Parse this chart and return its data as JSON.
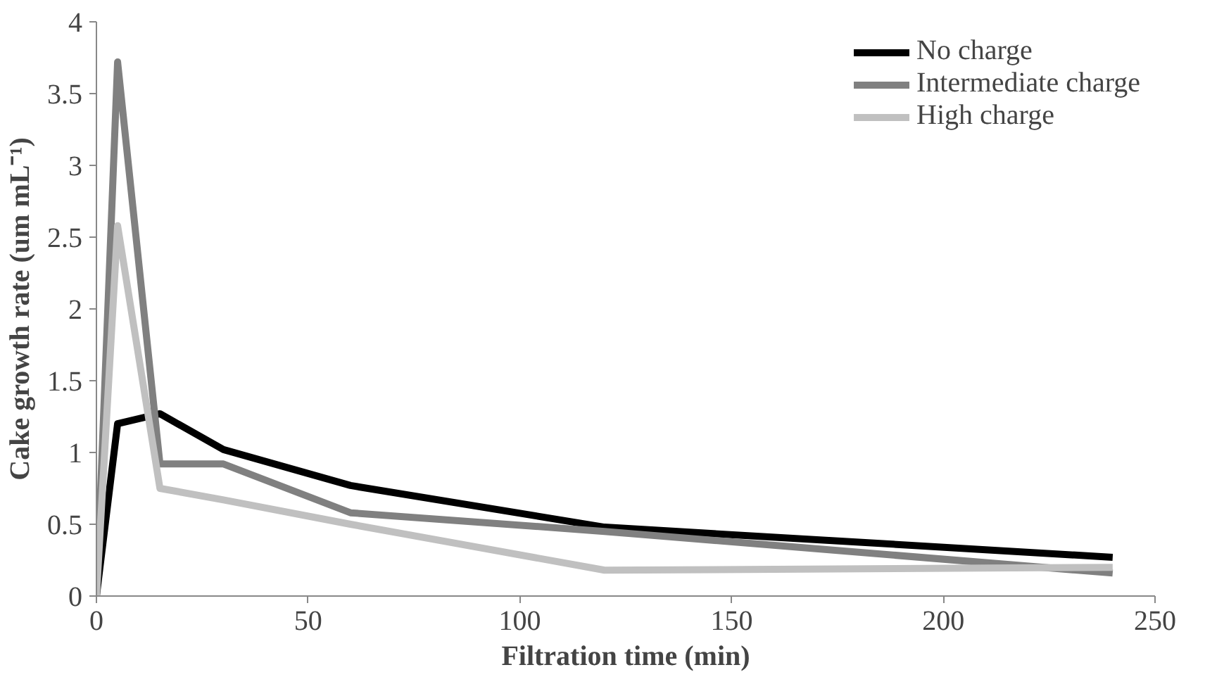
{
  "chart_data": {
    "type": "line",
    "xlabel": "Filtration time (min)",
    "ylabel": "Cake growth rate (um mL⁻¹)",
    "x": [
      0,
      5,
      15,
      30,
      60,
      120,
      240
    ],
    "series": [
      {
        "name": "No charge",
        "color": "#000000",
        "values": [
          0,
          1.2,
          1.27,
          1.02,
          0.77,
          0.48,
          0.27
        ]
      },
      {
        "name": "Intermediate charge",
        "color": "#808080",
        "values": [
          0,
          3.72,
          0.92,
          0.92,
          0.58,
          0.45,
          0.16
        ]
      },
      {
        "name": "High charge",
        "color": "#c0c0c0",
        "values": [
          0,
          2.58,
          0.75,
          0.67,
          0.5,
          0.18,
          0.2
        ]
      }
    ],
    "xlim": [
      0,
      250
    ],
    "xticks": [
      0,
      50,
      100,
      150,
      200,
      250
    ],
    "ylim": [
      0,
      4
    ],
    "yticks": [
      0,
      0.5,
      1,
      1.5,
      2,
      2.5,
      3,
      3.5,
      4
    ],
    "grid": false,
    "legend": "top right",
    "marker": "none",
    "line_style": "solid"
  }
}
